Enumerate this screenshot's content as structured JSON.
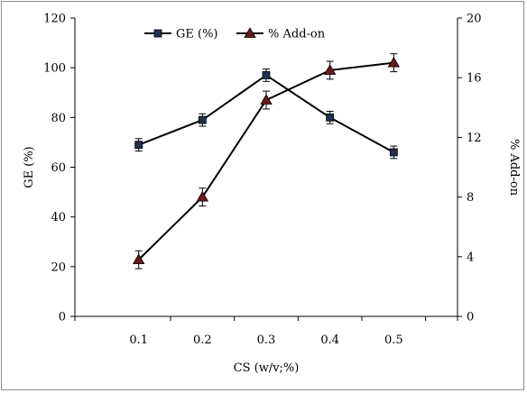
{
  "chart_data": {
    "type": "line",
    "title": "",
    "xlabel": "CS (w/v;%)",
    "ylabel_left": "GE (%)",
    "ylabel_right": "% Add-on",
    "x": [
      0.1,
      0.2,
      0.3,
      0.4,
      0.5
    ],
    "x_tick_labels": [
      "0.1",
      "0.2",
      "0.3",
      "0.4",
      "0.5"
    ],
    "ylim_left": [
      0,
      120
    ],
    "yticks_left": [
      "0",
      "20",
      "40",
      "60",
      "80",
      "100",
      "120"
    ],
    "ylim_right": [
      0,
      20
    ],
    "yticks_right": [
      "0",
      "4",
      "8",
      "12",
      "16",
      "20"
    ],
    "grid": false,
    "legend_position": "top",
    "series": [
      {
        "name": "GE (%)",
        "axis": "left",
        "marker": "square",
        "color": "#000000",
        "marker_fill": "#1f3050",
        "values": [
          69,
          79,
          97,
          80,
          66
        ],
        "errors": [
          2.5,
          2.5,
          2.5,
          2.5,
          2.5
        ]
      },
      {
        "name": "% Add-on",
        "axis": "right",
        "marker": "triangle",
        "color": "#000000",
        "marker_fill": "#6b1a1a",
        "values": [
          3.8,
          8.0,
          14.5,
          16.5,
          17.0
        ],
        "errors": [
          0.6,
          0.6,
          0.6,
          0.6,
          0.6
        ]
      }
    ]
  }
}
